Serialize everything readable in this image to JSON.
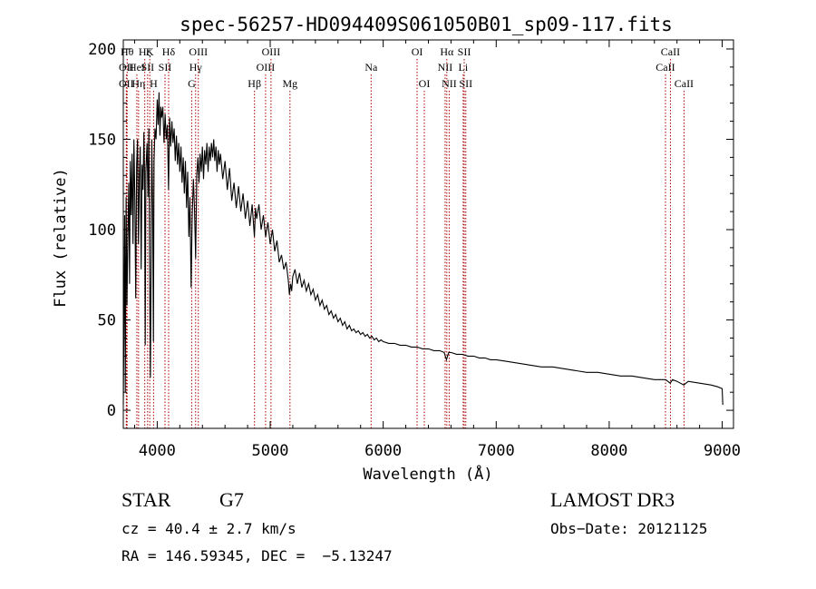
{
  "chart_data": {
    "type": "line",
    "title": "spec-56257-HD094409S061050B01_sp09-117.fits",
    "xlabel": "Wavelength (Å)",
    "ylabel": "Flux (relative)",
    "xlim": [
      3700,
      9100
    ],
    "ylim": [
      -10,
      205
    ],
    "xticks": [
      4000,
      5000,
      6000,
      7000,
      8000,
      9000
    ],
    "yticks": [
      0,
      50,
      100,
      150,
      200
    ],
    "line_color": "#000000",
    "marker_color": "#aa0000",
    "series": [
      {
        "name": "flux",
        "points": [
          [
            3700,
            3
          ],
          [
            3705,
            40
          ],
          [
            3712,
            108
          ],
          [
            3718,
            10
          ],
          [
            3725,
            118
          ],
          [
            3732,
            58
          ],
          [
            3740,
            96
          ],
          [
            3748,
            126
          ],
          [
            3755,
            70
          ],
          [
            3762,
            138
          ],
          [
            3770,
            108
          ],
          [
            3778,
            142
          ],
          [
            3786,
            92
          ],
          [
            3794,
            150
          ],
          [
            3802,
            118
          ],
          [
            3810,
            62
          ],
          [
            3818,
            136
          ],
          [
            3826,
            150
          ],
          [
            3834,
            92
          ],
          [
            3842,
            128
          ],
          [
            3850,
            146
          ],
          [
            3858,
            78
          ],
          [
            3866,
            136
          ],
          [
            3874,
            122
          ],
          [
            3882,
            154
          ],
          [
            3888,
            132
          ],
          [
            3894,
            36
          ],
          [
            3900,
            132
          ],
          [
            3910,
            148
          ],
          [
            3918,
            118
          ],
          [
            3926,
            156
          ],
          [
            3934,
            64
          ],
          [
            3940,
            18
          ],
          [
            3946,
            86
          ],
          [
            3952,
            150
          ],
          [
            3960,
            112
          ],
          [
            3966,
            38
          ],
          [
            3972,
            138
          ],
          [
            3980,
            156
          ],
          [
            3990,
            150
          ],
          [
            4000,
            172
          ],
          [
            4008,
            158
          ],
          [
            4016,
            176
          ],
          [
            4024,
            152
          ],
          [
            4032,
            168
          ],
          [
            4040,
            162
          ],
          [
            4050,
            168
          ],
          [
            4060,
            148
          ],
          [
            4070,
            164
          ],
          [
            4080,
            150
          ],
          [
            4090,
            158
          ],
          [
            4100,
            122
          ],
          [
            4110,
            162
          ],
          [
            4120,
            146
          ],
          [
            4130,
            160
          ],
          [
            4140,
            148
          ],
          [
            4150,
            156
          ],
          [
            4160,
            138
          ],
          [
            4170,
            152
          ],
          [
            4180,
            136
          ],
          [
            4190,
            148
          ],
          [
            4200,
            132
          ],
          [
            4210,
            146
          ],
          [
            4220,
            126
          ],
          [
            4230,
            140
          ],
          [
            4240,
            120
          ],
          [
            4250,
            138
          ],
          [
            4260,
            112
          ],
          [
            4270,
            132
          ],
          [
            4280,
            96
          ],
          [
            4290,
            118
          ],
          [
            4300,
            68
          ],
          [
            4310,
            108
          ],
          [
            4320,
            128
          ],
          [
            4330,
            112
          ],
          [
            4340,
            84
          ],
          [
            4350,
            130
          ],
          [
            4360,
            140
          ],
          [
            4370,
            126
          ],
          [
            4380,
            142
          ],
          [
            4390,
            132
          ],
          [
            4400,
            146
          ],
          [
            4410,
            128
          ],
          [
            4420,
            144
          ],
          [
            4430,
            136
          ],
          [
            4440,
            148
          ],
          [
            4450,
            132
          ],
          [
            4460,
            146
          ],
          [
            4470,
            138
          ],
          [
            4480,
            148
          ],
          [
            4490,
            140
          ],
          [
            4500,
            150
          ],
          [
            4510,
            138
          ],
          [
            4520,
            146
          ],
          [
            4530,
            132
          ],
          [
            4540,
            144
          ],
          [
            4550,
            136
          ],
          [
            4560,
            142
          ],
          [
            4580,
            128
          ],
          [
            4600,
            138
          ],
          [
            4620,
            122
          ],
          [
            4640,
            134
          ],
          [
            4660,
            116
          ],
          [
            4680,
            126
          ],
          [
            4700,
            112
          ],
          [
            4720,
            124
          ],
          [
            4740,
            110
          ],
          [
            4760,
            120
          ],
          [
            4780,
            106
          ],
          [
            4800,
            116
          ],
          [
            4820,
            102
          ],
          [
            4840,
            114
          ],
          [
            4860,
            96
          ],
          [
            4870,
            112
          ],
          [
            4880,
            106
          ],
          [
            4900,
            114
          ],
          [
            4920,
            100
          ],
          [
            4940,
            108
          ],
          [
            4960,
            96
          ],
          [
            4980,
            104
          ],
          [
            5000,
            92
          ],
          [
            5020,
            100
          ],
          [
            5040,
            88
          ],
          [
            5060,
            94
          ],
          [
            5080,
            82
          ],
          [
            5100,
            86
          ],
          [
            5120,
            78
          ],
          [
            5140,
            82
          ],
          [
            5160,
            72
          ],
          [
            5170,
            64
          ],
          [
            5180,
            70
          ],
          [
            5190,
            66
          ],
          [
            5200,
            74
          ],
          [
            5220,
            78
          ],
          [
            5240,
            70
          ],
          [
            5260,
            76
          ],
          [
            5280,
            68
          ],
          [
            5300,
            72
          ],
          [
            5320,
            66
          ],
          [
            5340,
            70
          ],
          [
            5360,
            64
          ],
          [
            5380,
            67
          ],
          [
            5400,
            61
          ],
          [
            5420,
            64
          ],
          [
            5440,
            58
          ],
          [
            5460,
            61
          ],
          [
            5480,
            56
          ],
          [
            5500,
            58
          ],
          [
            5520,
            53
          ],
          [
            5540,
            55
          ],
          [
            5560,
            51
          ],
          [
            5580,
            53
          ],
          [
            5600,
            49
          ],
          [
            5620,
            51
          ],
          [
            5640,
            47
          ],
          [
            5660,
            49
          ],
          [
            5680,
            45
          ],
          [
            5700,
            47
          ],
          [
            5720,
            44
          ],
          [
            5740,
            45
          ],
          [
            5760,
            43
          ],
          [
            5780,
            44
          ],
          [
            5800,
            42
          ],
          [
            5820,
            43
          ],
          [
            5840,
            41
          ],
          [
            5860,
            42
          ],
          [
            5880,
            40
          ],
          [
            5900,
            41
          ],
          [
            5920,
            39
          ],
          [
            5940,
            40
          ],
          [
            5960,
            38
          ],
          [
            5980,
            39
          ],
          [
            6000,
            38
          ],
          [
            6050,
            37
          ],
          [
            6100,
            37
          ],
          [
            6150,
            36
          ],
          [
            6200,
            36
          ],
          [
            6250,
            35
          ],
          [
            6300,
            35
          ],
          [
            6350,
            34
          ],
          [
            6400,
            34
          ],
          [
            6450,
            33
          ],
          [
            6500,
            33
          ],
          [
            6540,
            32
          ],
          [
            6560,
            28
          ],
          [
            6580,
            32
          ],
          [
            6600,
            32
          ],
          [
            6650,
            31
          ],
          [
            6700,
            31
          ],
          [
            6750,
            30
          ],
          [
            6800,
            30
          ],
          [
            6850,
            29
          ],
          [
            6900,
            29
          ],
          [
            6950,
            28
          ],
          [
            7000,
            28
          ],
          [
            7100,
            27
          ],
          [
            7200,
            26
          ],
          [
            7300,
            25
          ],
          [
            7400,
            24
          ],
          [
            7500,
            24
          ],
          [
            7600,
            23
          ],
          [
            7700,
            22
          ],
          [
            7800,
            21
          ],
          [
            7900,
            21
          ],
          [
            8000,
            20
          ],
          [
            8100,
            19
          ],
          [
            8200,
            19
          ],
          [
            8300,
            18
          ],
          [
            8400,
            17
          ],
          [
            8500,
            17
          ],
          [
            8540,
            15
          ],
          [
            8560,
            17
          ],
          [
            8600,
            16
          ],
          [
            8660,
            14
          ],
          [
            8700,
            16
          ],
          [
            8800,
            15
          ],
          [
            8900,
            14
          ],
          [
            8960,
            13
          ],
          [
            9000,
            12
          ],
          [
            9005,
            3
          ]
        ]
      }
    ],
    "lines": [
      {
        "x": 3734,
        "row": 1,
        "label": "Hθ"
      },
      {
        "x": 3727,
        "row": 2,
        "label": "OII"
      },
      {
        "x": 3727,
        "row": 3,
        "label": "OII"
      },
      {
        "x": 3820,
        "row": 2,
        "label": "HeI"
      },
      {
        "x": 3835,
        "row": 3,
        "label": "Hη"
      },
      {
        "x": 3890,
        "row": 1,
        "label": "Hζ"
      },
      {
        "x": 3934,
        "row": 1,
        "label": "K"
      },
      {
        "x": 3915,
        "row": 2,
        "label": "SII"
      },
      {
        "x": 3968,
        "row": 3,
        "label": "H"
      },
      {
        "x": 4101,
        "row": 1,
        "label": "Hδ"
      },
      {
        "x": 4069,
        "row": 2,
        "label": "SII"
      },
      {
        "x": 4364,
        "row": 1,
        "label": "OIII"
      },
      {
        "x": 4340,
        "row": 2,
        "label": "Hγ"
      },
      {
        "x": 4305,
        "row": 3,
        "label": "G"
      },
      {
        "x": 4861,
        "row": 3,
        "label": "Hβ"
      },
      {
        "x": 5007,
        "row": 1,
        "label": "OIII"
      },
      {
        "x": 4959,
        "row": 2,
        "label": "OIII"
      },
      {
        "x": 5175,
        "row": 3,
        "label": "Mg"
      },
      {
        "x": 5893,
        "row": 2,
        "label": "Na"
      },
      {
        "x": 6300,
        "row": 1,
        "label": "OI"
      },
      {
        "x": 6364,
        "row": 3,
        "label": "OI"
      },
      {
        "x": 6563,
        "row": 1,
        "label": "Hα"
      },
      {
        "x": 6548,
        "row": 2,
        "label": "NII"
      },
      {
        "x": 6584,
        "row": 3,
        "label": "NII"
      },
      {
        "x": 6717,
        "row": 1,
        "label": "SII"
      },
      {
        "x": 6708,
        "row": 2,
        "label": "Li"
      },
      {
        "x": 6731,
        "row": 3,
        "label": "SII"
      },
      {
        "x": 8542,
        "row": 1,
        "label": "CaII"
      },
      {
        "x": 8498,
        "row": 2,
        "label": "CaII"
      },
      {
        "x": 8662,
        "row": 3,
        "label": "CaII"
      }
    ]
  },
  "info": {
    "object_type": "STAR",
    "subclass": "G7",
    "cz": "cz = 40.4 ± 2.7 km/s",
    "coords": "RA = 146.59345, DEC =  −5.13247",
    "survey": "LAMOST DR3",
    "obs_date": "Obs−Date: 20121125"
  }
}
